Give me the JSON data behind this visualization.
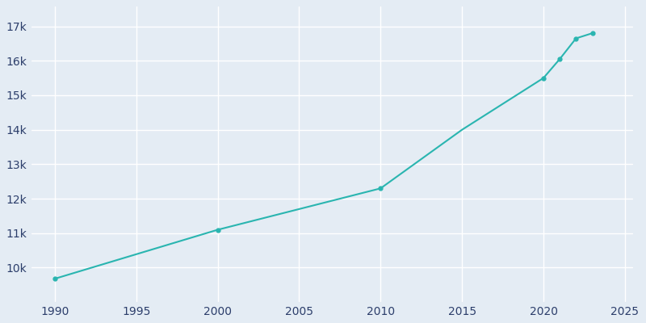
{
  "years": [
    1990,
    2000,
    2010,
    2015,
    2020,
    2021,
    2022,
    2023
  ],
  "population": [
    9680,
    11100,
    12300,
    14000,
    15500,
    16050,
    16650,
    16800
  ],
  "line_color": "#2ab5b0",
  "marker_color": "#2ab5b0",
  "background_color": "#e4ecf4",
  "grid_color": "#ffffff",
  "text_color": "#2c3e6b",
  "xlim": [
    1988.5,
    2025.5
  ],
  "ylim": [
    9000,
    17600
  ],
  "xticks": [
    1990,
    1995,
    2000,
    2005,
    2010,
    2015,
    2020,
    2025
  ],
  "yticks": [
    10000,
    11000,
    12000,
    13000,
    14000,
    15000,
    16000,
    17000
  ],
  "ytick_labels": [
    "10k",
    "11k",
    "12k",
    "13k",
    "14k",
    "15k",
    "16k",
    "17k"
  ],
  "marker_years": [
    1990,
    2000,
    2010,
    2020,
    2021,
    2022,
    2023
  ],
  "marker_populations": [
    9680,
    11100,
    12300,
    15500,
    16050,
    16650,
    16800
  ]
}
